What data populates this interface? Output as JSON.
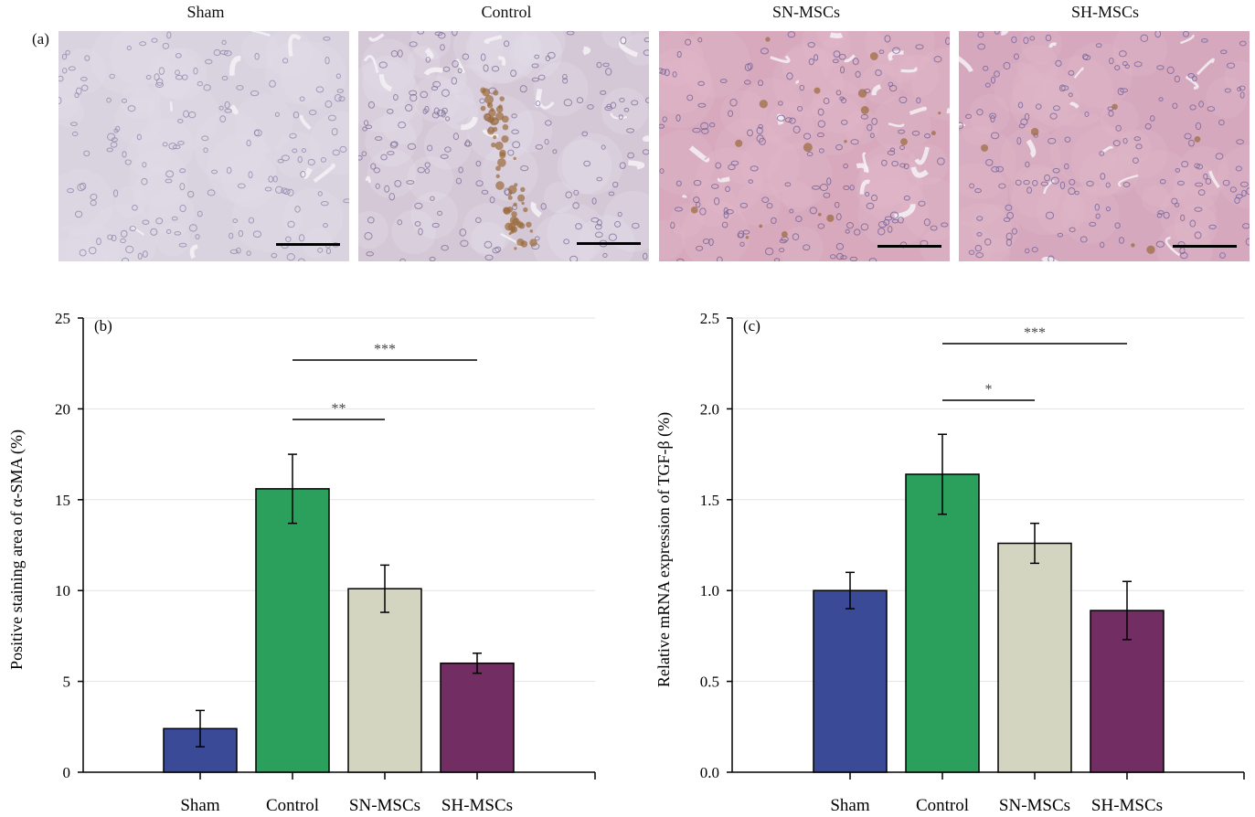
{
  "panel_a": {
    "letter": "(a)",
    "columns": [
      "Sham",
      "Control",
      "SN-MSCs",
      "SH-MSCs"
    ]
  },
  "chart_data": [
    {
      "type": "bar",
      "panel": "(b)",
      "categories": [
        "Sham",
        "Control",
        "SN-MSCs",
        "SH-MSCs"
      ],
      "values": [
        2.4,
        15.6,
        10.1,
        6.0
      ],
      "errors": [
        1.0,
        1.9,
        1.3,
        0.55
      ],
      "colors": [
        "#3a4a97",
        "#2aa05c",
        "#d4d5c0",
        "#722d63"
      ],
      "title": "",
      "xlabel": "",
      "ylabel": "Positive staining area of α-SMA (%)",
      "ylim": [
        0,
        25
      ],
      "yticks": [
        "0",
        "5",
        "10",
        "15",
        "20",
        "25"
      ],
      "grid": true,
      "significance": [
        {
          "from": "Control",
          "to": "SN-MSCs",
          "label": "**"
        },
        {
          "from": "Control",
          "to": "SH-MSCs",
          "label": "***"
        }
      ]
    },
    {
      "type": "bar",
      "panel": "(c)",
      "categories": [
        "Sham",
        "Control",
        "SN-MSCs",
        "SH-MSCs"
      ],
      "values": [
        1.0,
        1.64,
        1.26,
        0.89
      ],
      "errors": [
        0.1,
        0.22,
        0.11,
        0.16
      ],
      "colors": [
        "#3a4a97",
        "#2aa05c",
        "#d4d5c0",
        "#722d63"
      ],
      "title": "",
      "xlabel": "",
      "ylabel": "Relative mRNA expression of TGF-β (%)",
      "ylim": [
        0,
        2.5
      ],
      "yticks": [
        "0.0",
        "0.5",
        "1.0",
        "1.5",
        "2.0",
        "2.5"
      ],
      "grid": true,
      "significance": [
        {
          "from": "Control",
          "to": "SN-MSCs",
          "label": "*"
        },
        {
          "from": "Control",
          "to": "SH-MSCs",
          "label": "***"
        }
      ]
    }
  ]
}
